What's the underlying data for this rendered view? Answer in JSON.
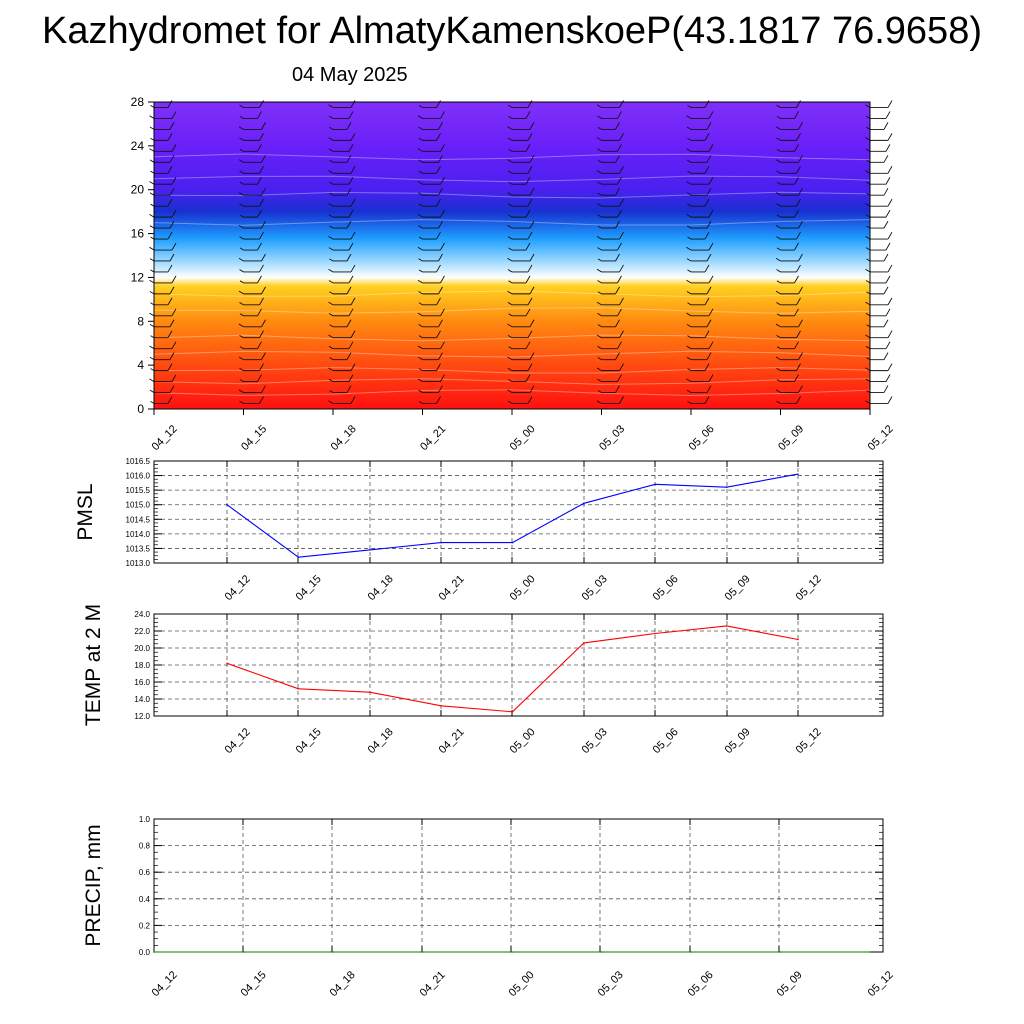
{
  "title": "Kazhydromet for AlmatyKamenskoeP(43.1817 76.9658)",
  "date": "04 May 2025",
  "colors": {
    "pmsl_line": "#0000ff",
    "temp_line": "#ff0000",
    "precip_line": "#008000",
    "grid": "#555555"
  },
  "chart_data": [
    {
      "type": "heatmap",
      "name": "vertical-profile",
      "x_ticks": [
        "04_12",
        "04_15",
        "04_18",
        "04_21",
        "05_00",
        "05_03",
        "05_06",
        "05_09",
        "05_12"
      ],
      "y_ticks": [
        0,
        4,
        8,
        12,
        16,
        20,
        24,
        28
      ],
      "ylim": [
        0,
        28
      ],
      "color_stops": [
        {
          "y": 0,
          "color": "#ff1010"
        },
        {
          "y": 4,
          "color": "#ff4a10"
        },
        {
          "y": 8,
          "color": "#ff8a10"
        },
        {
          "y": 11.2,
          "color": "#ffd020"
        },
        {
          "y": 12,
          "color": "#ffffff"
        },
        {
          "y": 13.5,
          "color": "#9ad8ff"
        },
        {
          "y": 15.5,
          "color": "#20a0ff"
        },
        {
          "y": 18,
          "color": "#1830d0"
        },
        {
          "y": 20,
          "color": "#4a20f0"
        },
        {
          "y": 24,
          "color": "#6a20f8"
        },
        {
          "y": 28,
          "color": "#8030f8"
        }
      ],
      "wind_barb_columns": [
        "04_12",
        "04_15",
        "04_18",
        "04_21",
        "05_00",
        "05_03",
        "05_06",
        "05_09",
        "05_12"
      ],
      "wind_barb_levels": [
        0.5,
        1.5,
        2.5,
        3.5,
        4.5,
        5.5,
        6.5,
        7.5,
        8.5,
        9.5,
        10.5,
        11.5,
        12.5,
        13.5,
        14.5,
        15.5,
        16.5,
        17.5,
        18.5,
        19.5,
        20.5,
        21.5,
        22.5,
        23.5,
        24.5,
        25.5,
        26.5,
        27.5
      ]
    },
    {
      "type": "line",
      "name": "pmsl",
      "ylabel": "PMSL",
      "ylim": [
        1013.0,
        1016.5
      ],
      "y_ticks": [
        "1013.0",
        "1013.5",
        "1014.0",
        "1014.5",
        "1015.0",
        "1015.5",
        "1016.0",
        "1016.5"
      ],
      "categories": [
        "04_12",
        "04_15",
        "04_18",
        "04_21",
        "05_00",
        "05_03",
        "05_06",
        "05_09",
        "05_12"
      ],
      "values": [
        1015.0,
        1013.2,
        1013.45,
        1013.7,
        1013.7,
        1015.05,
        1015.7,
        1015.6,
        1016.05
      ]
    },
    {
      "type": "line",
      "name": "temp",
      "ylabel": "TEMP at 2 M",
      "ylim": [
        12.0,
        24.0
      ],
      "y_ticks": [
        "12.0",
        "14.0",
        "16.0",
        "18.0",
        "20.0",
        "22.0",
        "24.0"
      ],
      "categories": [
        "04_12",
        "04_15",
        "04_18",
        "04_21",
        "05_00",
        "05_03",
        "05_06",
        "05_09",
        "05_12"
      ],
      "values": [
        18.2,
        15.2,
        14.8,
        13.2,
        12.5,
        20.6,
        21.7,
        22.6,
        21.0
      ]
    },
    {
      "type": "line",
      "name": "precip",
      "ylabel": "PRECIP, mm",
      "ylim": [
        0.0,
        1.0
      ],
      "y_ticks": [
        "0.0",
        "0.2",
        "0.4",
        "0.6",
        "0.8",
        "1.0"
      ],
      "categories": [
        "04_12",
        "04_15",
        "04_18",
        "04_21",
        "05_00",
        "05_03",
        "05_06",
        "05_09",
        "05_12"
      ],
      "values": [
        0,
        0,
        0,
        0,
        0,
        0,
        0,
        0,
        0
      ]
    }
  ]
}
